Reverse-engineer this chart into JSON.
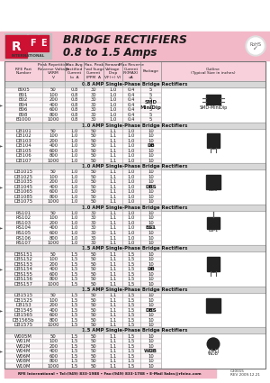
{
  "title_line1": "BRIDGE RECTIFIERS",
  "title_line2": "0.8 to 1.5 Amps",
  "header_bg": "#f2b8c8",
  "white_top": "#ffffff",
  "sections": [
    {
      "header": "0.8 AMP Single-Phase Bridge Rectifiers",
      "package": "SMD\nMiniDip",
      "outline_label": "SMD-MiniDip",
      "pkg_key": "SMD",
      "rows": [
        [
          "B005",
          "50",
          "0.8",
          "30",
          "1.0",
          "0.4",
          "5"
        ],
        [
          "B01",
          "100",
          "0.8",
          "30",
          "1.0",
          "0.4",
          "5"
        ],
        [
          "B02",
          "200",
          "0.8",
          "30",
          "1.0",
          "0.4",
          "5"
        ],
        [
          "B04",
          "400",
          "0.8",
          "30",
          "1.0",
          "0.4",
          "5"
        ],
        [
          "B06",
          "600",
          "0.8",
          "30",
          "1.0",
          "0.4",
          "5"
        ],
        [
          "B08",
          "800",
          "0.8",
          "30",
          "1.0",
          "0.4",
          "5"
        ],
        [
          "B1000",
          "1000",
          "0.8",
          "30",
          "1.0",
          "0.4",
          "5"
        ]
      ]
    },
    {
      "header": "1.0 AMP Single-Phase Bridge Rectifiers",
      "package": "DB",
      "outline_label": "DB",
      "pkg_key": "DB",
      "rows": [
        [
          "DB101",
          "50",
          "1.0",
          "50",
          "1.1",
          "1.0",
          "10"
        ],
        [
          "DB102",
          "100",
          "1.0",
          "50",
          "1.1",
          "1.0",
          "10"
        ],
        [
          "DB103",
          "200",
          "1.0",
          "50",
          "1.1",
          "1.0",
          "10"
        ],
        [
          "DB104",
          "400",
          "1.0",
          "50",
          "1.1",
          "1.0",
          "10"
        ],
        [
          "DB105",
          "600",
          "1.0",
          "50",
          "1.1",
          "1.0",
          "10"
        ],
        [
          "DB106",
          "800",
          "1.0",
          "50",
          "1.1",
          "1.0",
          "10"
        ],
        [
          "DB107",
          "1000",
          "1.0",
          "50",
          "1.1",
          "1.0",
          "10"
        ]
      ]
    },
    {
      "header": "1.0 AMP Single-Phase Bridge Rectifiers",
      "package": "DBS",
      "outline_label": "DBS",
      "pkg_key": "DBS",
      "rows": [
        [
          "DB1015",
          "50",
          "1.0",
          "50",
          "1.1",
          "1.0",
          "10"
        ],
        [
          "DB1025",
          "100",
          "1.0",
          "50",
          "1.1",
          "1.0",
          "10"
        ],
        [
          "DB1035",
          "200",
          "1.0",
          "50",
          "1.1",
          "1.0",
          "10"
        ],
        [
          "DB1045",
          "400",
          "1.0",
          "50",
          "1.1",
          "1.0",
          "10"
        ],
        [
          "DB1065",
          "600",
          "1.0",
          "50",
          "1.1",
          "1.0",
          "10"
        ],
        [
          "DB1085",
          "800",
          "1.0",
          "50",
          "1.1",
          "1.0",
          "10"
        ],
        [
          "DB1075",
          "1000",
          "1.0",
          "50",
          "1.1",
          "1.0",
          "10"
        ]
      ]
    },
    {
      "header": "1.0 AMP Single-Phase Bridge Rectifiers",
      "package": "BS1",
      "outline_label": "BS-1",
      "pkg_key": "BS1",
      "rows": [
        [
          "RS101",
          "50",
          "1.0",
          "30",
          "1.1",
          "1.0",
          "10"
        ],
        [
          "RS102",
          "100",
          "1.0",
          "30",
          "1.1",
          "1.0",
          "10"
        ],
        [
          "RS103",
          "200",
          "1.0",
          "30",
          "1.1",
          "1.0",
          "10"
        ],
        [
          "RS104",
          "400",
          "1.0",
          "30",
          "1.1",
          "1.0",
          "10"
        ],
        [
          "RS105",
          "600",
          "1.0",
          "30",
          "1.1",
          "1.0",
          "10"
        ],
        [
          "RS106",
          "800",
          "1.0",
          "30",
          "1.1",
          "1.0",
          "10"
        ],
        [
          "RS107",
          "1000",
          "1.0",
          "30",
          "1.1",
          "1.0",
          "10"
        ]
      ]
    },
    {
      "header": "1.5 AMP Single-Phase Bridge Rectifiers",
      "package": "DB",
      "outline_label": "DB",
      "pkg_key": "DB",
      "rows": [
        [
          "DBS151",
          "50",
          "1.5",
          "50",
          "1.1",
          "1.5",
          "10"
        ],
        [
          "DBS152",
          "100",
          "1.5",
          "50",
          "1.1",
          "1.5",
          "10"
        ],
        [
          "DBS153",
          "200",
          "1.5",
          "50",
          "1.1",
          "1.5",
          "10"
        ],
        [
          "DBS154",
          "400",
          "1.5",
          "50",
          "1.1",
          "1.5",
          "10"
        ],
        [
          "DBS155",
          "600",
          "1.5",
          "50",
          "1.1",
          "1.5",
          "10"
        ],
        [
          "DBS156",
          "800",
          "1.5",
          "50",
          "1.1",
          "1.5",
          "10"
        ],
        [
          "DBS157",
          "1000",
          "1.5",
          "50",
          "1.1",
          "1.5",
          "10"
        ]
      ]
    },
    {
      "header": "1.5 AMP Single-Phase Bridge Rectifiers",
      "package": "DBS",
      "outline_label": "DBS",
      "pkg_key": "DBS",
      "rows": [
        [
          "DB1515",
          "50",
          "1.5",
          "50",
          "1.1",
          "1.5",
          "10"
        ],
        [
          "DB1525",
          "100",
          "1.5",
          "50",
          "1.1",
          "1.5",
          "10"
        ],
        [
          "DB153",
          "200",
          "1.5",
          "50",
          "1.1",
          "1.5",
          "10"
        ],
        [
          "DB1545",
          "400",
          "1.5",
          "50",
          "1.1",
          "1.5",
          "10"
        ],
        [
          "DB1565",
          "600",
          "1.5",
          "50",
          "1.1",
          "1.5",
          "10"
        ],
        [
          "DB1565b",
          "800",
          "1.5",
          "50",
          "1.1",
          "1.5",
          "10"
        ],
        [
          "DB1575",
          "1000",
          "1.5",
          "50",
          "1.1",
          "1.5",
          "10"
        ]
      ]
    },
    {
      "header": "1.5 AMP Single-Phase Bridge Rectifiers",
      "package": "WOB",
      "outline_label": "WOB",
      "pkg_key": "WOB",
      "rows": [
        [
          "W005M",
          "50",
          "1.5",
          "50",
          "1.1",
          "1.5",
          "10"
        ],
        [
          "W01M",
          "100",
          "1.5",
          "50",
          "1.1",
          "1.5",
          "10"
        ],
        [
          "W02M",
          "200",
          "1.5",
          "50",
          "1.1",
          "1.5",
          "10"
        ],
        [
          "W04M",
          "400",
          "1.5",
          "50",
          "1.1",
          "1.5",
          "10"
        ],
        [
          "W06M",
          "600",
          "1.5",
          "50",
          "1.1",
          "1.5",
          "10"
        ],
        [
          "W08M",
          "800",
          "1.5",
          "50",
          "1.1",
          "1.5",
          "10"
        ],
        [
          "W10M",
          "1000",
          "1.5",
          "50",
          "1.1",
          "1.5",
          "10"
        ]
      ]
    }
  ],
  "col_headers_line1": [
    "RFE Part",
    "Peak Repetitive",
    "Max Avg",
    "Max. Peak",
    "Forward",
    "Max Reverse",
    "Package",
    "Outline"
  ],
  "col_headers_line2": [
    "Number",
    "Reverse Voltage",
    "Rectified",
    "Fwd Surge",
    "Voltage",
    "Current",
    "",
    "(Typical Size in inches)"
  ],
  "col_headers_line3": [
    "",
    "VRRM",
    "Current",
    "Current",
    "Drop",
    "",
    "",
    ""
  ],
  "col_headers_line4": [
    "",
    "V",
    "Io",
    "IPPM",
    "VF(+)",
    "IR(MAX)",
    "",
    ""
  ],
  "col_headers_line5": [
    "",
    "",
    "A",
    "A",
    "VI",
    "uA",
    "",
    ""
  ],
  "footer_text": "RFE International • Tel:(949) 833-1988 • Fax:(949) 833-1788 • E-Mail Sales@rfeinc.com",
  "footer_code": "C30015\nREV 2009.12.21"
}
